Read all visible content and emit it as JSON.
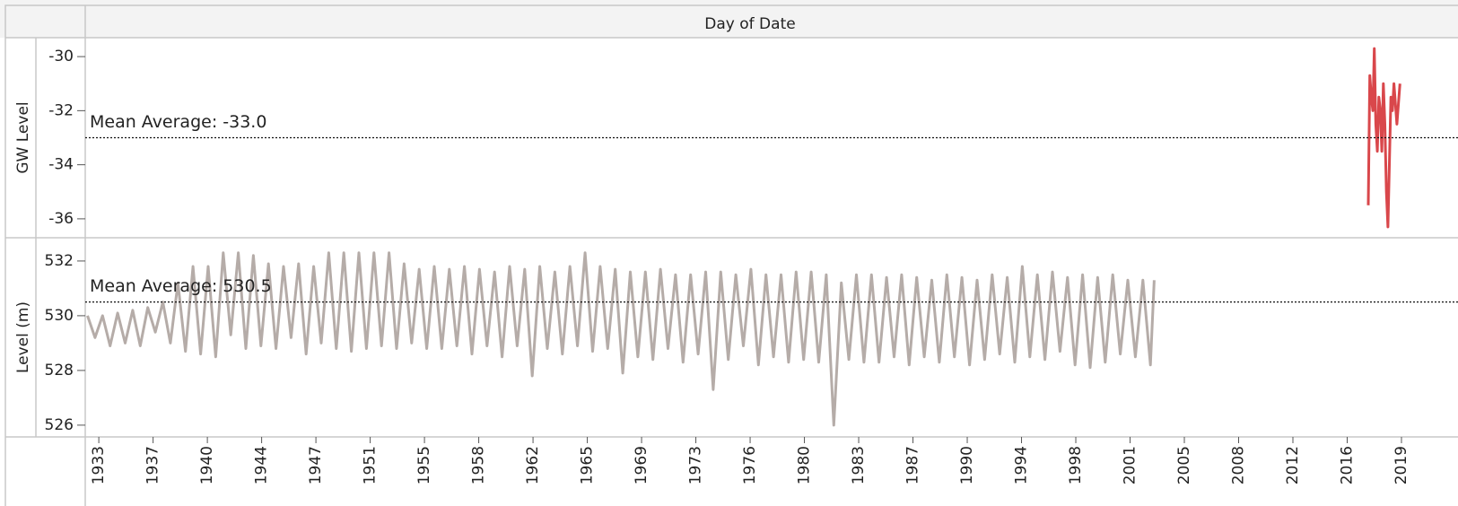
{
  "chart_data": {
    "type": "line",
    "x_axis_title": "Day of Date",
    "xlim": [
      1932.1,
      2023.15
    ],
    "xticks": [
      {
        "value": 1933.0,
        "label": "1933"
      },
      {
        "value": 1936.6,
        "label": "1937"
      },
      {
        "value": 1940.2,
        "label": "1940"
      },
      {
        "value": 1943.8,
        "label": "1944"
      },
      {
        "value": 1947.4,
        "label": "1947"
      },
      {
        "value": 1951.0,
        "label": "1951"
      },
      {
        "value": 1954.6,
        "label": "1955"
      },
      {
        "value": 1958.2,
        "label": "1958"
      },
      {
        "value": 1961.8,
        "label": "1962"
      },
      {
        "value": 1965.4,
        "label": "1965"
      },
      {
        "value": 1969.0,
        "label": "1969"
      },
      {
        "value": 1972.6,
        "label": "1973"
      },
      {
        "value": 1976.2,
        "label": "1976"
      },
      {
        "value": 1979.8,
        "label": "1980"
      },
      {
        "value": 1983.4,
        "label": "1983"
      },
      {
        "value": 1987.0,
        "label": "1987"
      },
      {
        "value": 1990.6,
        "label": "1990"
      },
      {
        "value": 1994.2,
        "label": "1994"
      },
      {
        "value": 1997.8,
        "label": "1998"
      },
      {
        "value": 2001.4,
        "label": "2001"
      },
      {
        "value": 2005.0,
        "label": "2005"
      },
      {
        "value": 2008.6,
        "label": "2008"
      },
      {
        "value": 2012.2,
        "label": "2012"
      },
      {
        "value": 2015.8,
        "label": "2016"
      },
      {
        "value": 2019.4,
        "label": "2019"
      }
    ],
    "panes": [
      {
        "y_label": "GW Level",
        "ylim": [
          -36.7,
          -29.3
        ],
        "yticks": [
          -30,
          -32,
          -34,
          -36
        ],
        "reference_line": {
          "value": -33.0,
          "label": "Mean Average: -33.0"
        },
        "series": [
          {
            "color": "#d9474b",
            "x": [
              2017.2,
              2017.3,
              2017.4,
              2017.5,
              2017.6,
              2017.7,
              2017.8,
              2017.9,
              2018.0,
              2018.1,
              2018.2,
              2018.3,
              2018.4,
              2018.5,
              2018.6,
              2018.7,
              2018.8,
              2018.9,
              2019.1,
              2019.3
            ],
            "values": [
              -35.5,
              -30.7,
              -31.5,
              -32.0,
              -29.7,
              -32.5,
              -33.5,
              -31.5,
              -32.0,
              -33.5,
              -31.0,
              -32.5,
              -35.0,
              -36.3,
              -34.0,
              -31.5,
              -32.0,
              -31.0,
              -32.5,
              -31.0
            ]
          }
        ]
      },
      {
        "y_label": "Level (m)",
        "ylim": [
          525.57,
          532.85
        ],
        "yticks": [
          532,
          530,
          528,
          526
        ],
        "reference_line": {
          "value": 530.5,
          "label": "Mean Average: 530.5"
        },
        "series": [
          {
            "color": "#b5aca8",
            "x": [
              1932.25,
              1932.75,
              1933.25,
              1933.75,
              1934.25,
              1934.75,
              1935.25,
              1935.75,
              1936.25,
              1936.75,
              1937.25,
              1937.75,
              1938.25,
              1938.75,
              1939.25,
              1939.75,
              1940.25,
              1940.75,
              1941.25,
              1941.75,
              1942.25,
              1942.75,
              1943.25,
              1943.75,
              1944.25,
              1944.75,
              1945.25,
              1945.75,
              1946.25,
              1946.75,
              1947.25,
              1947.75,
              1948.25,
              1948.75,
              1949.25,
              1949.75,
              1950.25,
              1950.75,
              1951.25,
              1951.75,
              1952.25,
              1952.75,
              1953.25,
              1953.75,
              1954.25,
              1954.75,
              1955.25,
              1955.75,
              1956.25,
              1956.75,
              1957.25,
              1957.75,
              1958.25,
              1958.75,
              1959.25,
              1959.75,
              1960.25,
              1960.75,
              1961.25,
              1961.75,
              1962.25,
              1962.75,
              1963.25,
              1963.75,
              1964.25,
              1964.75,
              1965.25,
              1965.75,
              1966.25,
              1966.75,
              1967.25,
              1967.75,
              1968.25,
              1968.75,
              1969.25,
              1969.75,
              1970.25,
              1970.75,
              1971.25,
              1971.75,
              1972.25,
              1972.75,
              1973.25,
              1973.75,
              1974.25,
              1974.75,
              1975.25,
              1975.75,
              1976.25,
              1976.75,
              1977.25,
              1977.75,
              1978.25,
              1978.75,
              1979.25,
              1979.75,
              1980.25,
              1980.75,
              1981.25,
              1981.75,
              1982.25,
              1982.75,
              1983.25,
              1983.75,
              1984.25,
              1984.75,
              1985.25,
              1985.75,
              1986.25,
              1986.75,
              1987.25,
              1987.75,
              1988.25,
              1988.75,
              1989.25,
              1989.75,
              1990.25,
              1990.75,
              1991.25,
              1991.75,
              1992.25,
              1992.75,
              1993.25,
              1993.75,
              1994.25,
              1994.75,
              1995.25,
              1995.75,
              1996.25,
              1996.75,
              1997.25,
              1997.75,
              1998.25,
              1998.75,
              1999.25,
              1999.75,
              2000.25,
              2000.75,
              2001.25,
              2001.75,
              2002.25,
              2002.75,
              2003.0
            ],
            "values": [
              530.0,
              529.2,
              530.0,
              528.9,
              530.1,
              529.0,
              530.2,
              528.9,
              530.3,
              529.4,
              530.5,
              529.0,
              531.2,
              528.7,
              531.8,
              528.6,
              531.8,
              528.5,
              532.3,
              529.3,
              532.3,
              528.8,
              532.2,
              528.9,
              531.9,
              528.8,
              531.8,
              529.2,
              531.9,
              528.6,
              531.8,
              529.0,
              532.3,
              528.8,
              532.3,
              528.7,
              532.3,
              528.8,
              532.3,
              528.9,
              532.3,
              528.8,
              531.9,
              529.0,
              531.7,
              528.8,
              531.8,
              528.8,
              531.7,
              528.9,
              531.8,
              528.6,
              531.7,
              528.9,
              531.6,
              528.5,
              531.8,
              528.9,
              531.7,
              527.8,
              531.8,
              528.8,
              531.6,
              528.6,
              531.8,
              528.9,
              532.3,
              528.7,
              531.8,
              528.8,
              531.7,
              527.9,
              531.6,
              528.5,
              531.6,
              528.4,
              531.7,
              528.8,
              531.5,
              528.3,
              531.5,
              528.6,
              531.6,
              527.3,
              531.6,
              528.4,
              531.5,
              528.9,
              531.7,
              528.2,
              531.5,
              528.5,
              531.5,
              528.3,
              531.6,
              528.4,
              531.6,
              528.3,
              531.5,
              526.0,
              531.2,
              528.4,
              531.5,
              528.3,
              531.5,
              528.3,
              531.4,
              528.5,
              531.5,
              528.2,
              531.4,
              528.5,
              531.3,
              528.3,
              531.5,
              528.5,
              531.4,
              528.2,
              531.3,
              528.4,
              531.5,
              528.6,
              531.4,
              528.3,
              531.8,
              528.5,
              531.5,
              528.4,
              531.6,
              528.7,
              531.4,
              528.2,
              531.5,
              528.1,
              531.4,
              528.3,
              531.5,
              528.6,
              531.3,
              528.5,
              531.3,
              528.2,
              531.3
            ]
          }
        ]
      }
    ]
  }
}
